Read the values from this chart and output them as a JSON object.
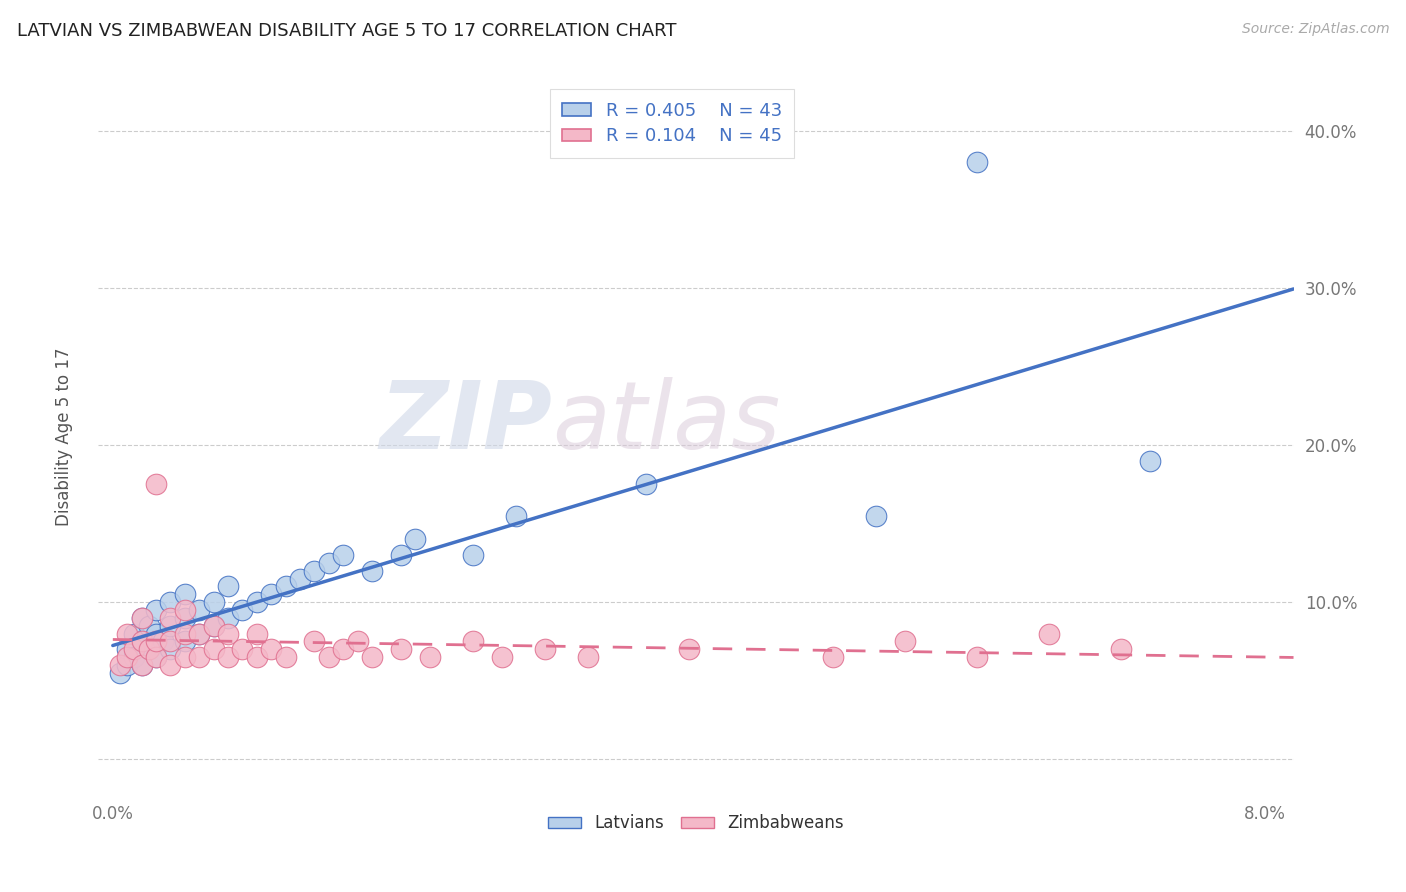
{
  "title": "LATVIAN VS ZIMBABWEAN DISABILITY AGE 5 TO 17 CORRELATION CHART",
  "source": "Source: ZipAtlas.com",
  "ylabel": "Disability Age 5 to 17",
  "xlim": [
    -0.001,
    0.082
  ],
  "ylim": [
    -0.022,
    0.432
  ],
  "xtick_positions": [
    0.0,
    0.01,
    0.02,
    0.03,
    0.04,
    0.05,
    0.06,
    0.07,
    0.08
  ],
  "xticklabels": [
    "0.0%",
    "",
    "",
    "",
    "",
    "",
    "",
    "",
    "8.0%"
  ],
  "ytick_positions": [
    0.0,
    0.1,
    0.2,
    0.3,
    0.4
  ],
  "yticklabels": [
    "",
    "10.0%",
    "20.0%",
    "30.0%",
    "40.0%"
  ],
  "latvian_R": "0.405",
  "latvian_N": "43",
  "zimbabwean_R": "0.104",
  "zimbabwean_N": "45",
  "latvian_fill": "#b8d0ea",
  "latvian_edge": "#4472c4",
  "zimbabwean_fill": "#f4b8c8",
  "zimbabwean_edge": "#e07090",
  "watermark_zip": "ZIP",
  "watermark_atlas": "atlas",
  "bg_color": "#ffffff",
  "grid_color": "#cccccc",
  "latvians_x": [
    0.0005,
    0.001,
    0.001,
    0.0015,
    0.0015,
    0.002,
    0.002,
    0.002,
    0.0025,
    0.0025,
    0.003,
    0.003,
    0.003,
    0.0035,
    0.004,
    0.004,
    0.004,
    0.005,
    0.005,
    0.005,
    0.006,
    0.006,
    0.007,
    0.007,
    0.008,
    0.008,
    0.009,
    0.01,
    0.011,
    0.012,
    0.013,
    0.014,
    0.015,
    0.016,
    0.018,
    0.02,
    0.021,
    0.025,
    0.028,
    0.037,
    0.053,
    0.06,
    0.072
  ],
  "latvians_y": [
    0.055,
    0.06,
    0.07,
    0.065,
    0.08,
    0.06,
    0.075,
    0.09,
    0.07,
    0.085,
    0.065,
    0.08,
    0.095,
    0.075,
    0.07,
    0.085,
    0.1,
    0.075,
    0.09,
    0.105,
    0.08,
    0.095,
    0.085,
    0.1,
    0.09,
    0.11,
    0.095,
    0.1,
    0.105,
    0.11,
    0.115,
    0.12,
    0.125,
    0.13,
    0.12,
    0.13,
    0.14,
    0.13,
    0.155,
    0.175,
    0.155,
    0.38,
    0.19
  ],
  "zimbabweans_x": [
    0.0005,
    0.001,
    0.001,
    0.0015,
    0.002,
    0.002,
    0.002,
    0.0025,
    0.003,
    0.003,
    0.003,
    0.004,
    0.004,
    0.004,
    0.005,
    0.005,
    0.005,
    0.006,
    0.006,
    0.007,
    0.007,
    0.008,
    0.008,
    0.009,
    0.01,
    0.01,
    0.011,
    0.012,
    0.014,
    0.015,
    0.016,
    0.017,
    0.018,
    0.02,
    0.022,
    0.025,
    0.027,
    0.03,
    0.033,
    0.04,
    0.05,
    0.055,
    0.06,
    0.065,
    0.07
  ],
  "zimbabweans_y": [
    0.06,
    0.065,
    0.08,
    0.07,
    0.06,
    0.075,
    0.09,
    0.07,
    0.065,
    0.075,
    0.175,
    0.06,
    0.075,
    0.09,
    0.065,
    0.08,
    0.095,
    0.065,
    0.08,
    0.07,
    0.085,
    0.065,
    0.08,
    0.07,
    0.065,
    0.08,
    0.07,
    0.065,
    0.075,
    0.065,
    0.07,
    0.075,
    0.065,
    0.07,
    0.065,
    0.075,
    0.065,
    0.07,
    0.065,
    0.07,
    0.065,
    0.075,
    0.065,
    0.08,
    0.07
  ]
}
